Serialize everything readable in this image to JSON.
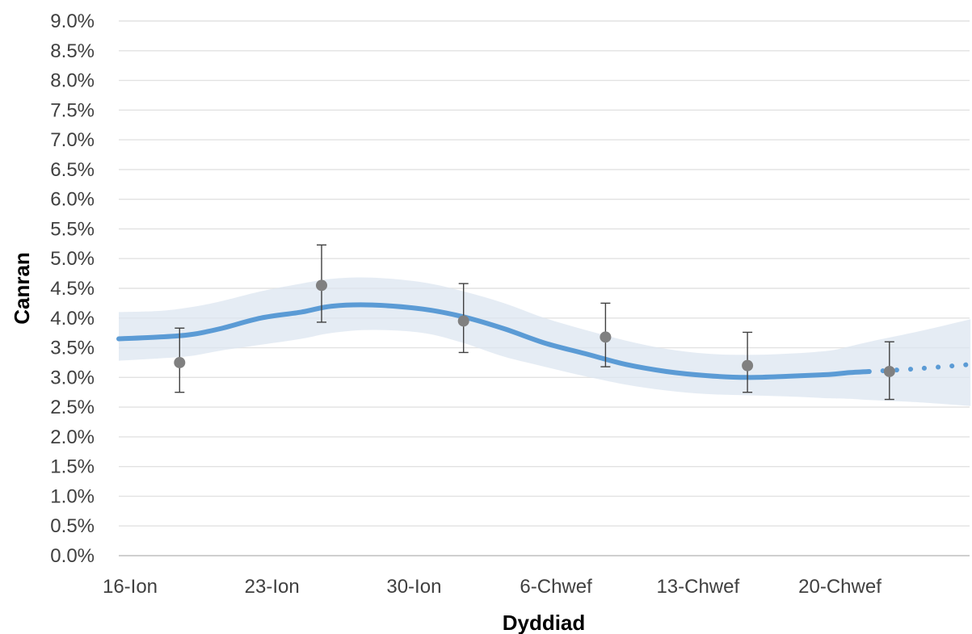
{
  "chart_data": {
    "type": "line",
    "title": "",
    "xlabel": "Dyddiad",
    "ylabel": "Canran",
    "x_axis": {
      "ticks": [
        {
          "day": 0,
          "label": "16-Ion"
        },
        {
          "day": 7,
          "label": "23-Ion"
        },
        {
          "day": 14,
          "label": "30-Ion"
        },
        {
          "day": 21,
          "label": "6-Chwef"
        },
        {
          "day": 28,
          "label": "13-Chwef"
        },
        {
          "day": 35,
          "label": "20-Chwef"
        }
      ],
      "range": [
        0,
        42
      ]
    },
    "y_axis": {
      "min": 0,
      "max": 9,
      "step": 0.5,
      "tick_labels": [
        "0.0%",
        "0.5%",
        "1.0%",
        "1.5%",
        "2.0%",
        "2.5%",
        "3.0%",
        "3.5%",
        "4.0%",
        "4.5%",
        "5.0%",
        "5.5%",
        "6.0%",
        "6.5%",
        "7.0%",
        "7.5%",
        "8.0%",
        "8.5%",
        "9.0%"
      ]
    },
    "grid": "horizontal",
    "legend": "none",
    "series": [
      {
        "kind": "modelled-trend",
        "color": "#5b9bd5",
        "band_color": "#dce6f0",
        "points": [
          {
            "x": 0,
            "y": 3.65,
            "lo": 3.28,
            "hi": 4.1
          },
          {
            "x": 2,
            "y": 3.68,
            "lo": 3.32,
            "hi": 4.12
          },
          {
            "x": 3.5,
            "y": 3.72,
            "lo": 3.36,
            "hi": 4.18
          },
          {
            "x": 5,
            "y": 3.82,
            "lo": 3.45,
            "hi": 4.28
          },
          {
            "x": 7,
            "y": 4.0,
            "lo": 3.55,
            "hi": 4.45
          },
          {
            "x": 9,
            "y": 4.1,
            "lo": 3.65,
            "hi": 4.58
          },
          {
            "x": 10.5,
            "y": 4.2,
            "lo": 3.75,
            "hi": 4.66
          },
          {
            "x": 12.5,
            "y": 4.22,
            "lo": 3.8,
            "hi": 4.68
          },
          {
            "x": 15,
            "y": 4.15,
            "lo": 3.75,
            "hi": 4.6
          },
          {
            "x": 17,
            "y": 4.02,
            "lo": 3.58,
            "hi": 4.45
          },
          {
            "x": 19,
            "y": 3.82,
            "lo": 3.35,
            "hi": 4.25
          },
          {
            "x": 21,
            "y": 3.58,
            "lo": 3.18,
            "hi": 4.0
          },
          {
            "x": 23,
            "y": 3.4,
            "lo": 3.02,
            "hi": 3.8
          },
          {
            "x": 25,
            "y": 3.22,
            "lo": 2.88,
            "hi": 3.62
          },
          {
            "x": 27,
            "y": 3.1,
            "lo": 2.78,
            "hi": 3.48
          },
          {
            "x": 29,
            "y": 3.03,
            "lo": 2.72,
            "hi": 3.4
          },
          {
            "x": 31,
            "y": 3.0,
            "lo": 2.7,
            "hi": 3.38
          },
          {
            "x": 33,
            "y": 3.02,
            "lo": 2.68,
            "hi": 3.4
          },
          {
            "x": 35,
            "y": 3.05,
            "lo": 2.65,
            "hi": 3.45
          },
          {
            "x": 36,
            "y": 3.08,
            "lo": 2.64,
            "hi": 3.52
          },
          {
            "x": 37,
            "y": 3.1,
            "lo": 2.62,
            "hi": 3.6
          }
        ],
        "dotted_points": [
          {
            "x": 37,
            "y": 3.1,
            "lo": 2.62,
            "hi": 3.6
          },
          {
            "x": 39.5,
            "y": 3.15,
            "lo": 2.58,
            "hi": 3.78
          },
          {
            "x": 42,
            "y": 3.22,
            "lo": 2.52,
            "hi": 3.98
          }
        ]
      },
      {
        "kind": "survey-estimates",
        "color": "#808080",
        "points": [
          {
            "x": 3,
            "y": 3.25,
            "lo": 2.75,
            "hi": 3.83
          },
          {
            "x": 10,
            "y": 4.55,
            "lo": 3.93,
            "hi": 5.23
          },
          {
            "x": 17,
            "y": 3.95,
            "lo": 3.42,
            "hi": 4.58
          },
          {
            "x": 24,
            "y": 3.68,
            "lo": 3.18,
            "hi": 4.25
          },
          {
            "x": 31,
            "y": 3.2,
            "lo": 2.75,
            "hi": 3.76
          },
          {
            "x": 38,
            "y": 3.1,
            "lo": 2.63,
            "hi": 3.6
          }
        ]
      }
    ]
  }
}
